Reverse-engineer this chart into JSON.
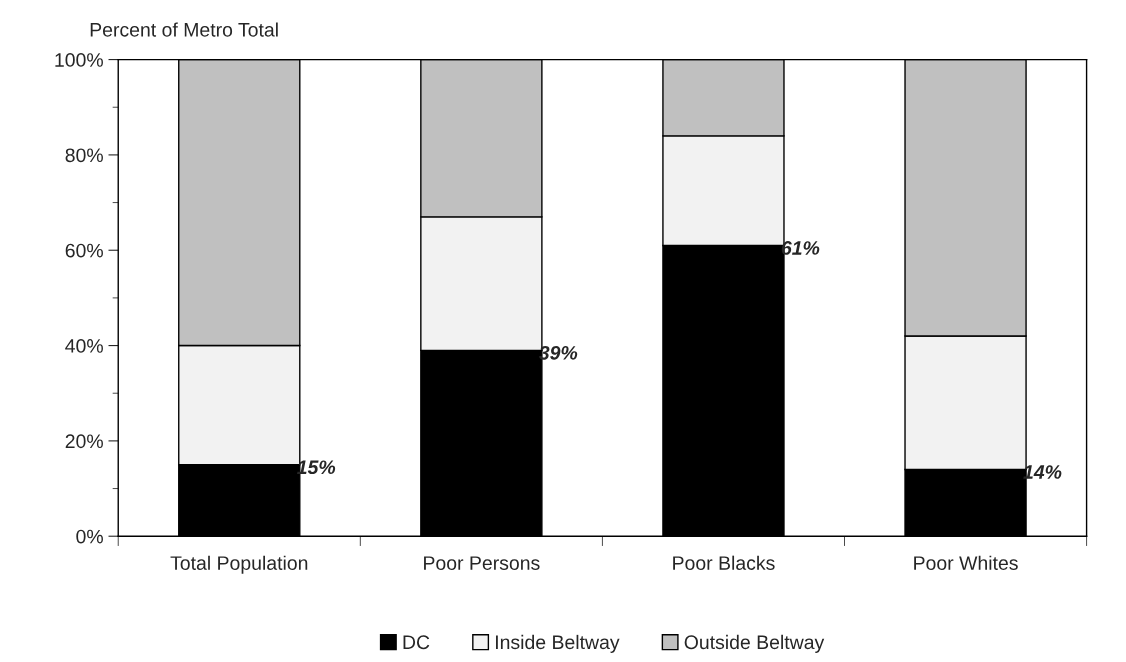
{
  "chart_data": {
    "type": "bar",
    "stacked": true,
    "ylabel": "Percent of Metro Total",
    "categories": [
      "Total Population",
      "Poor Persons",
      "Poor Blacks",
      "Poor Whites"
    ],
    "series": [
      {
        "name": "DC",
        "color": "#000000",
        "values": [
          15,
          39,
          61,
          14
        ],
        "value_labels": [
          "15%",
          "39%",
          "61%",
          "14%"
        ]
      },
      {
        "name": "Inside Beltway",
        "color": "#f2f2f2",
        "values": [
          25,
          28,
          23,
          28
        ]
      },
      {
        "name": "Outside Beltway",
        "color": "#c0c0c0",
        "values": [
          60,
          33,
          16,
          58
        ]
      }
    ],
    "ylim": [
      0,
      100
    ],
    "yticks": [
      {
        "value": 0,
        "label": "0%"
      },
      {
        "value": 20,
        "label": "20%"
      },
      {
        "value": 40,
        "label": "40%"
      },
      {
        "value": 60,
        "label": "60%"
      },
      {
        "value": 80,
        "label": "80%"
      },
      {
        "value": 100,
        "label": "100%"
      }
    ],
    "grid": false,
    "legend": "bottom"
  }
}
